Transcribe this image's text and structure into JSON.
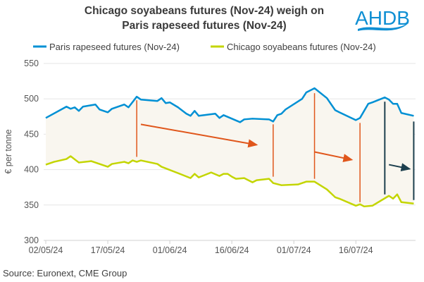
{
  "chart_data": {
    "type": "line",
    "title_lines": [
      "Chicago soyabeans futures (Nov-24) weigh on",
      "Paris rapeseed futures (Nov-24)"
    ],
    "xlabel": "",
    "ylabel": "€ per tonne",
    "ylim": [
      300,
      550
    ],
    "yticks": [
      "300",
      "350",
      "400",
      "450",
      "500",
      "550"
    ],
    "xticks": [
      "02/05/24",
      "17/05/24",
      "01/06/24",
      "16/06/24",
      "01/07/24",
      "16/07/24"
    ],
    "xtick_dates": [
      "2024-05-02",
      "2024-05-17",
      "2024-06-01",
      "2024-06-16",
      "2024-07-01",
      "2024-07-16"
    ],
    "grid": "horizontal",
    "legend_position": "top",
    "source": "Source: Euronext, CME Group",
    "logo_text": "AHDB",
    "colors": {
      "paris": "#0090d4",
      "chicago": "#c3d500",
      "spread_fill": "#f9f6ef",
      "arrow_orange": "#e0561b",
      "arrow_dark": "#1d3f4e",
      "logo": "#0f8fd3"
    },
    "series": [
      {
        "name": "Paris rapeseed futures (Nov-24)",
        "points": [
          [
            "2024-05-02",
            473
          ],
          [
            "2024-05-07",
            489
          ],
          [
            "2024-05-08",
            486
          ],
          [
            "2024-05-09",
            488
          ],
          [
            "2024-05-10",
            483
          ],
          [
            "2024-05-11",
            489
          ],
          [
            "2024-05-14",
            492
          ],
          [
            "2024-05-15",
            485
          ],
          [
            "2024-05-17",
            481
          ],
          [
            "2024-05-18",
            486
          ],
          [
            "2024-05-21",
            492
          ],
          [
            "2024-05-22",
            488
          ],
          [
            "2024-05-24",
            503
          ],
          [
            "2024-05-25",
            499
          ],
          [
            "2024-05-29",
            497
          ],
          [
            "2024-05-30",
            501
          ],
          [
            "2024-05-31",
            494
          ],
          [
            "2024-06-01",
            495
          ],
          [
            "2024-06-03",
            488
          ],
          [
            "2024-06-05",
            479
          ],
          [
            "2024-06-06",
            476
          ],
          [
            "2024-06-07",
            483
          ],
          [
            "2024-06-08",
            476
          ],
          [
            "2024-06-12",
            479
          ],
          [
            "2024-06-13",
            473
          ],
          [
            "2024-06-14",
            477
          ],
          [
            "2024-06-16",
            472
          ],
          [
            "2024-06-18",
            467
          ],
          [
            "2024-06-19",
            471
          ],
          [
            "2024-06-21",
            472
          ],
          [
            "2024-06-25",
            471
          ],
          [
            "2024-06-26",
            468
          ],
          [
            "2024-06-27",
            477
          ],
          [
            "2024-06-28",
            479
          ],
          [
            "2024-06-29",
            485
          ],
          [
            "2024-07-03",
            500
          ],
          [
            "2024-07-04",
            509
          ],
          [
            "2024-07-06",
            515
          ],
          [
            "2024-07-09",
            501
          ],
          [
            "2024-07-11",
            484
          ],
          [
            "2024-07-12",
            481
          ],
          [
            "2024-07-16",
            470
          ],
          [
            "2024-07-17",
            473
          ],
          [
            "2024-07-19",
            493
          ],
          [
            "2024-07-20",
            495
          ],
          [
            "2024-07-23",
            502
          ],
          [
            "2024-07-24",
            499
          ],
          [
            "2024-07-25",
            493
          ],
          [
            "2024-07-26",
            493
          ],
          [
            "2024-07-27",
            480
          ],
          [
            "2024-07-30",
            476
          ]
        ]
      },
      {
        "name": "Chicago soyabeans futures (Nov-24)",
        "points": [
          [
            "2024-05-02",
            407
          ],
          [
            "2024-05-04",
            411
          ],
          [
            "2024-05-07",
            415
          ],
          [
            "2024-05-08",
            419
          ],
          [
            "2024-05-10",
            410
          ],
          [
            "2024-05-13",
            412
          ],
          [
            "2024-05-17",
            404
          ],
          [
            "2024-05-18",
            408
          ],
          [
            "2024-05-21",
            411
          ],
          [
            "2024-05-22",
            409
          ],
          [
            "2024-05-23",
            413
          ],
          [
            "2024-05-24",
            411
          ],
          [
            "2024-05-25",
            413
          ],
          [
            "2024-05-29",
            408
          ],
          [
            "2024-05-30",
            404
          ],
          [
            "2024-06-03",
            395
          ],
          [
            "2024-06-06",
            388
          ],
          [
            "2024-06-07",
            394
          ],
          [
            "2024-06-08",
            389
          ],
          [
            "2024-06-11",
            396
          ],
          [
            "2024-06-13",
            391
          ],
          [
            "2024-06-14",
            394
          ],
          [
            "2024-06-15",
            394
          ],
          [
            "2024-06-16",
            390
          ],
          [
            "2024-06-17",
            387
          ],
          [
            "2024-06-19",
            388
          ],
          [
            "2024-06-21",
            382
          ],
          [
            "2024-06-22",
            385
          ],
          [
            "2024-06-25",
            387
          ],
          [
            "2024-06-26",
            381
          ],
          [
            "2024-06-28",
            378
          ],
          [
            "2024-07-02",
            379
          ],
          [
            "2024-07-04",
            383
          ],
          [
            "2024-07-06",
            383
          ],
          [
            "2024-07-09",
            372
          ],
          [
            "2024-07-11",
            361
          ],
          [
            "2024-07-12",
            359
          ],
          [
            "2024-07-16",
            349
          ],
          [
            "2024-07-17",
            351
          ],
          [
            "2024-07-18",
            348
          ],
          [
            "2024-07-20",
            349
          ],
          [
            "2024-07-24",
            363
          ],
          [
            "2024-07-25",
            359
          ],
          [
            "2024-07-26",
            365
          ],
          [
            "2024-07-27",
            354
          ],
          [
            "2024-07-30",
            352
          ]
        ]
      }
    ],
    "annotations": {
      "spread_lines": [
        {
          "date": "2024-05-24",
          "from": 418,
          "to": 498,
          "color": "orange"
        },
        {
          "date": "2024-06-26",
          "from": 390,
          "to": 464,
          "color": "orange"
        },
        {
          "date": "2024-07-06",
          "from": 387,
          "to": 508,
          "color": "orange"
        },
        {
          "date": "2024-07-17",
          "from": 354,
          "to": 466,
          "color": "orange"
        },
        {
          "date": "2024-07-23",
          "from": 365,
          "to": 496,
          "color": "dark"
        },
        {
          "date": "2024-07-30",
          "from": 357,
          "to": 468,
          "color": "dark"
        }
      ],
      "arrows": [
        {
          "from": [
            "2024-05-25",
            464
          ],
          "to": [
            "2024-06-22",
            435
          ],
          "color": "orange"
        },
        {
          "from": [
            "2024-07-06",
            425
          ],
          "to": [
            "2024-07-15",
            414
          ],
          "color": "orange"
        },
        {
          "from": [
            "2024-07-24",
            407
          ],
          "to": [
            "2024-07-29",
            401
          ],
          "color": "dark"
        }
      ]
    }
  }
}
